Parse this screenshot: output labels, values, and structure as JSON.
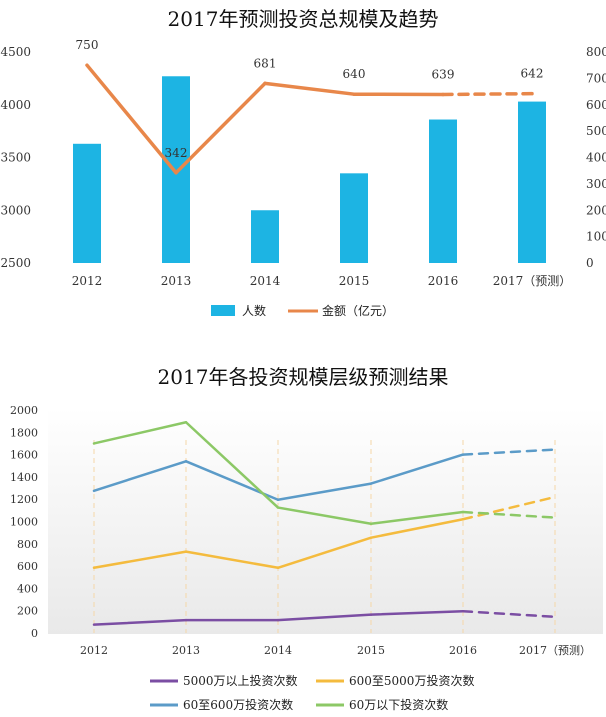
{
  "chart_data": [
    {
      "type": "bar",
      "title": "2017年预测投资总规模及趋势",
      "categories": [
        "2012",
        "2013",
        "2014",
        "2015",
        "2016",
        "2017（预测）"
      ],
      "ylim": [
        2500,
        4500
      ],
      "yticks": [
        2500,
        3000,
        3500,
        4000,
        4500
      ],
      "y2lim": [
        0,
        800
      ],
      "y2ticks": [
        0,
        100,
        200,
        300,
        400,
        500,
        600,
        700,
        800
      ],
      "series": [
        {
          "name": "人数",
          "type": "bar",
          "axis": "left",
          "color": "#1db4e3",
          "values": [
            3630,
            4270,
            3000,
            3350,
            3860,
            4030
          ]
        },
        {
          "name": "金额（亿元）",
          "type": "line",
          "axis": "right",
          "color": "#e8874a",
          "values": [
            750,
            342,
            681,
            640,
            639,
            642
          ],
          "dashed_from_index": 4
        }
      ],
      "data_labels": [
        "750",
        "342",
        "681",
        "640",
        "639",
        "642"
      ],
      "grid": false,
      "legend": "bottom"
    },
    {
      "type": "line",
      "title": "2017年各投资规模层级预测结果",
      "categories": [
        "2012",
        "2013",
        "2014",
        "2015",
        "2016",
        "2017（预测）"
      ],
      "ylim": [
        0,
        2000
      ],
      "yticks": [
        0,
        200,
        400,
        600,
        800,
        1000,
        1200,
        1400,
        1600,
        1800,
        2000
      ],
      "series": [
        {
          "name": "5000万以上投资次数",
          "color": "#7b4ea3",
          "values": [
            75,
            115,
            115,
            165,
            195,
            145
          ],
          "dashed_from_index": 4
        },
        {
          "name": "600至5000万投资次数",
          "color": "#f4bb3e",
          "values": [
            585,
            730,
            585,
            855,
            1020,
            1220
          ],
          "dashed_from_index": 4
        },
        {
          "name": "60至600万投资次数",
          "color": "#5b9bc8",
          "values": [
            1275,
            1540,
            1195,
            1340,
            1600,
            1645
          ],
          "dashed_from_index": 4
        },
        {
          "name": "60万以下投资次数",
          "color": "#8cc866",
          "values": [
            1700,
            1890,
            1125,
            980,
            1085,
            1035
          ],
          "dashed_from_index": 4
        }
      ],
      "grid": false,
      "legend": "bottom"
    }
  ]
}
